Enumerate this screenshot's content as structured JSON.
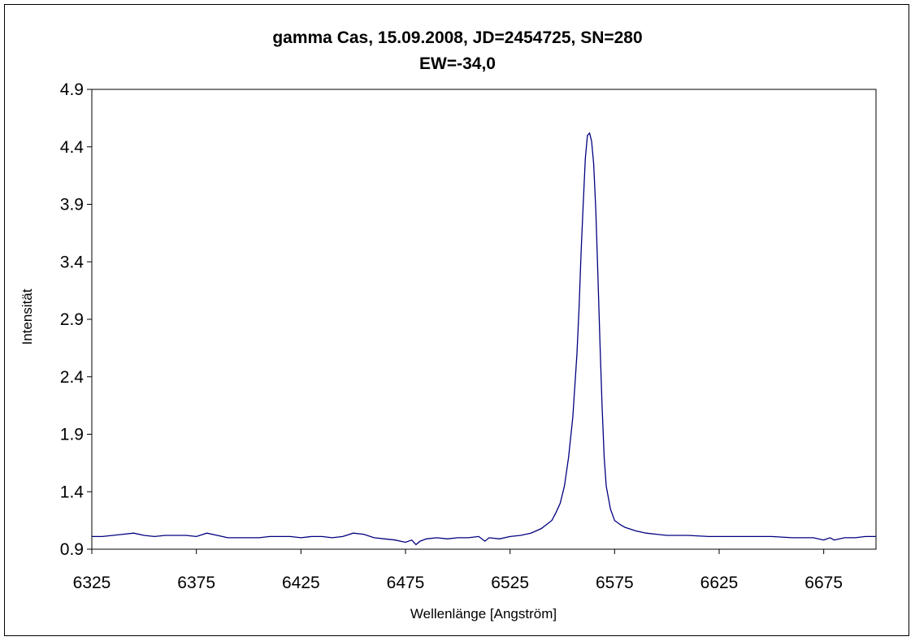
{
  "chart_data": {
    "type": "line",
    "title": "gamma Cas, 15.09.2008, JD=2454725, SN=280",
    "subtitle": "EW=-34,0",
    "xlabel": "Wellenlänge [Angström]",
    "ylabel": "Intensität",
    "xlim": [
      6325,
      6700
    ],
    "ylim": [
      0.9,
      4.9
    ],
    "xticks": [
      "6325",
      "6375",
      "6425",
      "6475",
      "6525",
      "6575",
      "6625",
      "6675"
    ],
    "yticks": [
      "0.9",
      "1.4",
      "1.9",
      "2.4",
      "2.9",
      "3.4",
      "3.9",
      "4.4",
      "4.9"
    ],
    "grid": false,
    "series": [
      {
        "color": "#000080",
        "x": [
          6325,
          6330,
          6335,
          6340,
          6345,
          6350,
          6355,
          6360,
          6365,
          6370,
          6375,
          6380,
          6385,
          6390,
          6395,
          6400,
          6405,
          6410,
          6415,
          6420,
          6425,
          6430,
          6435,
          6440,
          6445,
          6450,
          6455,
          6460,
          6465,
          6470,
          6475,
          6478,
          6480,
          6482,
          6485,
          6490,
          6495,
          6500,
          6505,
          6510,
          6513,
          6515,
          6520,
          6525,
          6530,
          6535,
          6540,
          6545,
          6547,
          6549,
          6551,
          6553,
          6555,
          6557,
          6558,
          6559,
          6560,
          6561,
          6562,
          6563,
          6564,
          6565,
          6566,
          6567,
          6568,
          6569,
          6570,
          6571,
          6573,
          6575,
          6578,
          6580,
          6585,
          6590,
          6595,
          6600,
          6610,
          6620,
          6630,
          6640,
          6650,
          6660,
          6670,
          6675,
          6678,
          6680,
          6685,
          6690,
          6695,
          6700
        ],
        "y": [
          1.01,
          1.01,
          1.02,
          1.03,
          1.04,
          1.02,
          1.01,
          1.02,
          1.02,
          1.02,
          1.01,
          1.04,
          1.02,
          1.0,
          1.0,
          1.0,
          1.0,
          1.01,
          1.01,
          1.01,
          1.0,
          1.01,
          1.01,
          1.0,
          1.01,
          1.04,
          1.03,
          1.0,
          0.99,
          0.98,
          0.96,
          0.98,
          0.94,
          0.97,
          0.99,
          1.0,
          0.99,
          1.0,
          1.0,
          1.01,
          0.97,
          1.0,
          0.99,
          1.01,
          1.02,
          1.04,
          1.08,
          1.15,
          1.22,
          1.3,
          1.45,
          1.7,
          2.05,
          2.6,
          3.0,
          3.5,
          3.9,
          4.3,
          4.5,
          4.52,
          4.45,
          4.25,
          3.85,
          3.3,
          2.7,
          2.15,
          1.7,
          1.45,
          1.25,
          1.15,
          1.11,
          1.09,
          1.06,
          1.04,
          1.03,
          1.02,
          1.02,
          1.01,
          1.01,
          1.01,
          1.01,
          1.0,
          1.0,
          0.98,
          1.0,
          0.98,
          1.0,
          1.0,
          1.01,
          1.01
        ]
      }
    ]
  }
}
